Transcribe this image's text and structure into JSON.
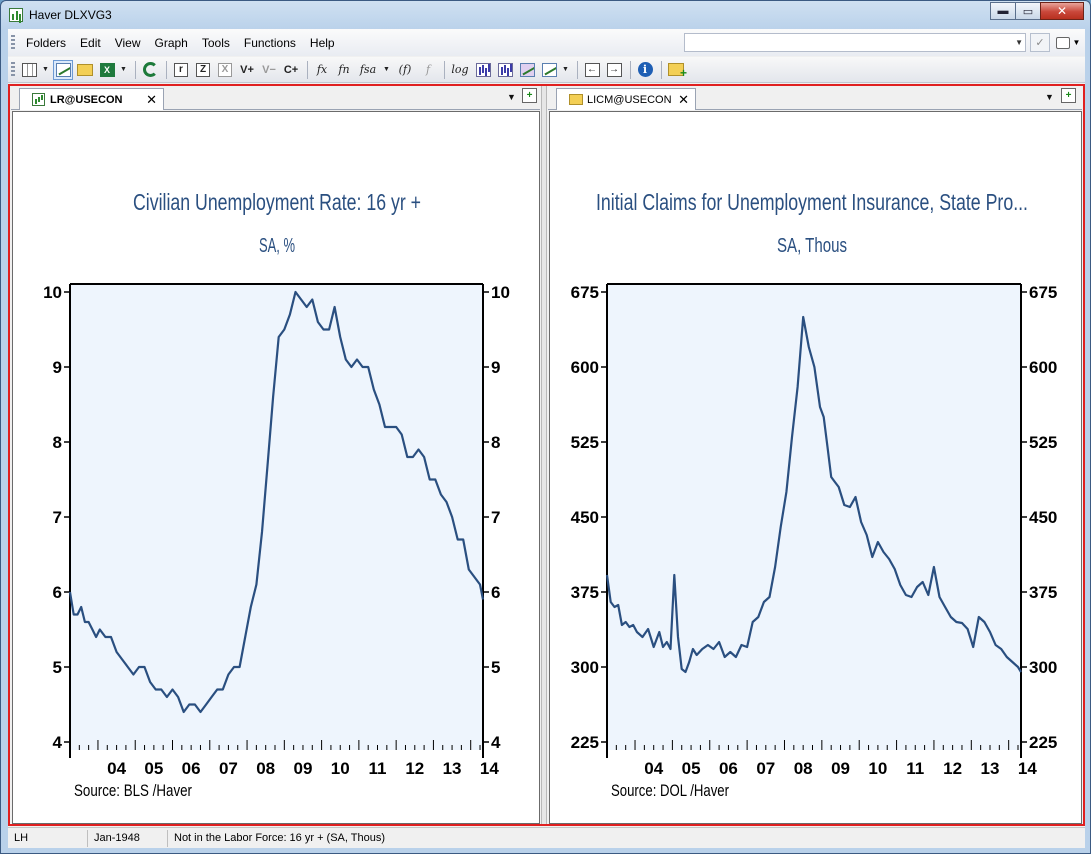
{
  "window": {
    "title": "Haver DLXVG3",
    "minimize_glyph": "▬",
    "maximize_glyph": "▭",
    "close_glyph": "✕"
  },
  "menu": [
    "Folders",
    "Edit",
    "View",
    "Graph",
    "Tools",
    "Functions",
    "Help"
  ],
  "toolbar": {
    "buttons": [
      "r",
      "Z",
      "X",
      "V+",
      "V−",
      "C+",
      "fx",
      "fn",
      "fsa",
      "(f)",
      "f",
      "log"
    ]
  },
  "tabs": {
    "left": {
      "label": "LR@USECON",
      "icon": "chart-icon"
    },
    "right": {
      "label": "LICM@USECON",
      "icon": "folder-icon"
    },
    "close_glyph": "✕",
    "menu_glyph": "▼",
    "add_glyph": "+"
  },
  "charts": [
    {
      "title": "Civilian Unemployment Rate: 16 yr +",
      "subtitle": "SA, %",
      "source": "Source:  BLS /Haver"
    },
    {
      "title": "Initial Claims for Unemployment Insurance, State Pro...",
      "subtitle": "SA, Thous",
      "source": "Source:  DOL /Haver"
    }
  ],
  "chart_data": [
    {
      "type": "line",
      "title": "Civilian Unemployment Rate: 16 yr +",
      "subtitle": "SA, %",
      "ylim": [
        4,
        10
      ],
      "yticks": [
        4,
        5,
        6,
        7,
        8,
        9,
        10
      ],
      "xlim": [
        2003.25,
        2014.33
      ],
      "xticks": [
        "04",
        "05",
        "06",
        "07",
        "08",
        "09",
        "10",
        "11",
        "12",
        "13",
        "14"
      ],
      "grid": false,
      "line_color": "#2a4f80",
      "x": [
        2003.25,
        2003.35,
        2003.45,
        2003.55,
        2003.65,
        2003.75,
        2003.85,
        2003.95,
        2004.05,
        2004.2,
        2004.35,
        2004.5,
        2004.65,
        2004.8,
        2004.95,
        2005.1,
        2005.25,
        2005.4,
        2005.55,
        2005.7,
        2005.85,
        2006.0,
        2006.15,
        2006.3,
        2006.45,
        2006.6,
        2006.75,
        2006.9,
        2007.05,
        2007.2,
        2007.35,
        2007.5,
        2007.65,
        2007.8,
        2007.95,
        2008.1,
        2008.25,
        2008.4,
        2008.55,
        2008.7,
        2008.85,
        2009.0,
        2009.15,
        2009.3,
        2009.45,
        2009.6,
        2009.75,
        2009.9,
        2010.05,
        2010.2,
        2010.35,
        2010.5,
        2010.65,
        2010.8,
        2010.95,
        2011.1,
        2011.25,
        2011.4,
        2011.55,
        2011.7,
        2011.85,
        2012.0,
        2012.15,
        2012.3,
        2012.45,
        2012.6,
        2012.75,
        2012.9,
        2013.05,
        2013.2,
        2013.35,
        2013.5,
        2013.65,
        2013.8,
        2013.95,
        2014.1,
        2014.25,
        2014.33
      ],
      "values": [
        6.0,
        5.7,
        5.7,
        5.8,
        5.6,
        5.6,
        5.5,
        5.4,
        5.5,
        5.4,
        5.4,
        5.2,
        5.1,
        5.0,
        4.9,
        5.0,
        5.0,
        4.8,
        4.7,
        4.7,
        4.6,
        4.7,
        4.6,
        4.4,
        4.5,
        4.5,
        4.4,
        4.5,
        4.6,
        4.7,
        4.7,
        4.9,
        5.0,
        5.0,
        5.4,
        5.8,
        6.1,
        6.8,
        7.7,
        8.6,
        9.4,
        9.5,
        9.7,
        10.0,
        9.9,
        9.8,
        9.9,
        9.6,
        9.5,
        9.5,
        9.8,
        9.4,
        9.1,
        9.0,
        9.1,
        9.0,
        9.0,
        8.7,
        8.5,
        8.2,
        8.2,
        8.2,
        8.1,
        7.8,
        7.8,
        7.9,
        7.8,
        7.5,
        7.5,
        7.3,
        7.2,
        7.0,
        6.7,
        6.7,
        6.3,
        6.2,
        6.1,
        5.9
      ]
    },
    {
      "type": "line",
      "title": "Initial Claims for Unemployment Insurance, State Pro...",
      "subtitle": "SA, Thous",
      "ylim": [
        225,
        675
      ],
      "yticks": [
        225,
        300,
        375,
        450,
        525,
        600,
        675
      ],
      "xlim": [
        2003.25,
        2014.33
      ],
      "xticks": [
        "04",
        "05",
        "06",
        "07",
        "08",
        "09",
        "10",
        "11",
        "12",
        "13",
        "14"
      ],
      "grid": false,
      "line_color": "#2a4f80",
      "x": [
        2003.25,
        2003.35,
        2003.45,
        2003.55,
        2003.65,
        2003.75,
        2003.85,
        2003.95,
        2004.05,
        2004.2,
        2004.35,
        2004.5,
        2004.65,
        2004.75,
        2004.85,
        2004.95,
        2005.05,
        2005.15,
        2005.25,
        2005.35,
        2005.45,
        2005.55,
        2005.65,
        2005.8,
        2005.95,
        2006.1,
        2006.25,
        2006.4,
        2006.55,
        2006.7,
        2006.85,
        2007.0,
        2007.15,
        2007.3,
        2007.45,
        2007.6,
        2007.75,
        2007.9,
        2008.05,
        2008.2,
        2008.35,
        2008.5,
        2008.65,
        2008.8,
        2008.95,
        2009.05,
        2009.15,
        2009.25,
        2009.35,
        2009.45,
        2009.6,
        2009.75,
        2009.9,
        2010.05,
        2010.2,
        2010.35,
        2010.5,
        2010.65,
        2010.8,
        2010.95,
        2011.1,
        2011.25,
        2011.4,
        2011.55,
        2011.7,
        2011.85,
        2012.0,
        2012.15,
        2012.3,
        2012.45,
        2012.6,
        2012.75,
        2012.9,
        2013.05,
        2013.2,
        2013.35,
        2013.5,
        2013.65,
        2013.8,
        2013.95,
        2014.1,
        2014.25,
        2014.33
      ],
      "values": [
        392,
        365,
        360,
        362,
        342,
        345,
        340,
        342,
        335,
        330,
        338,
        320,
        335,
        320,
        325,
        318,
        392,
        330,
        298,
        295,
        305,
        318,
        312,
        318,
        322,
        318,
        325,
        310,
        315,
        310,
        322,
        320,
        345,
        350,
        365,
        370,
        400,
        440,
        475,
        530,
        580,
        650,
        620,
        600,
        560,
        550,
        520,
        490,
        485,
        480,
        462,
        460,
        470,
        445,
        432,
        410,
        425,
        415,
        408,
        398,
        382,
        372,
        370,
        380,
        385,
        372,
        400,
        370,
        360,
        350,
        345,
        344,
        338,
        320,
        350,
        345,
        335,
        322,
        318,
        310,
        305,
        300,
        295
      ]
    }
  ],
  "status": {
    "mode": "LH",
    "date": "Jan-1948",
    "series": "Not in the Labor Force: 16 yr + (SA, Thous)"
  }
}
